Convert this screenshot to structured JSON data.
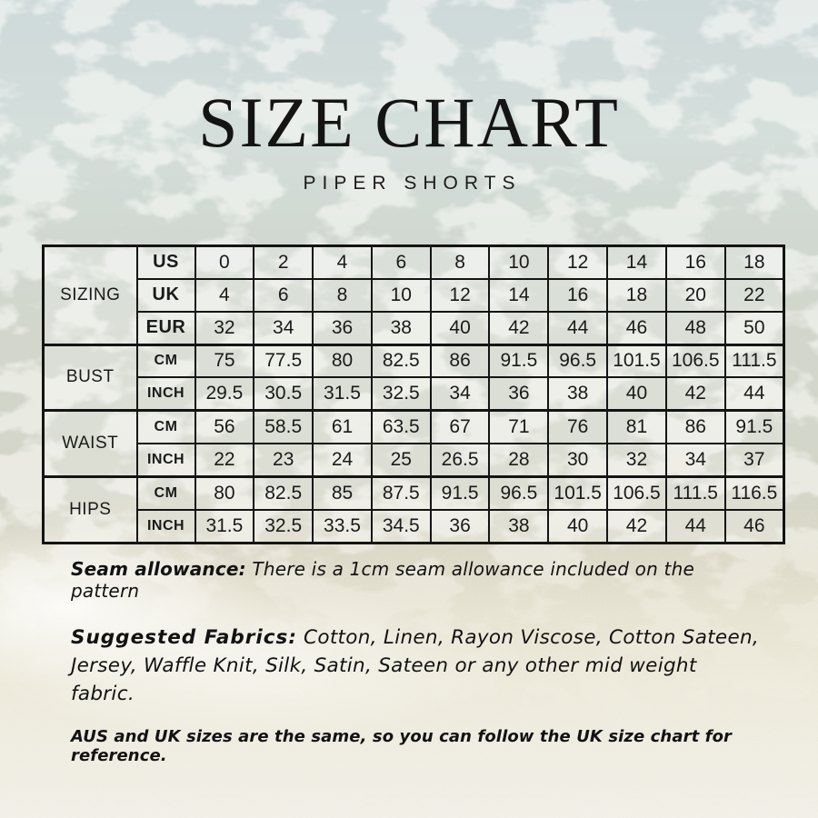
{
  "header": {
    "title": "SIZE CHART",
    "subtitle": "PIPER SHORTS"
  },
  "table": {
    "groups": [
      {
        "label": "SIZING",
        "rows": [
          {
            "unit": "US",
            "values": [
              "0",
              "2",
              "4",
              "6",
              "8",
              "10",
              "12",
              "14",
              "16",
              "18"
            ]
          },
          {
            "unit": "UK",
            "values": [
              "4",
              "6",
              "8",
              "10",
              "12",
              "14",
              "16",
              "18",
              "20",
              "22"
            ]
          },
          {
            "unit": "EUR",
            "values": [
              "32",
              "34",
              "36",
              "38",
              "40",
              "42",
              "44",
              "46",
              "48",
              "50"
            ]
          }
        ]
      },
      {
        "label": "BUST",
        "rows": [
          {
            "unit": "CM",
            "values": [
              "75",
              "77.5",
              "80",
              "82.5",
              "86",
              "91.5",
              "96.5",
              "101.5",
              "106.5",
              "111.5"
            ]
          },
          {
            "unit": "INCH",
            "values": [
              "29.5",
              "30.5",
              "31.5",
              "32.5",
              "34",
              "36",
              "38",
              "40",
              "42",
              "44"
            ]
          }
        ]
      },
      {
        "label": "WAIST",
        "rows": [
          {
            "unit": "CM",
            "values": [
              "56",
              "58.5",
              "61",
              "63.5",
              "67",
              "71",
              "76",
              "81",
              "86",
              "91.5"
            ]
          },
          {
            "unit": "INCH",
            "values": [
              "22",
              "23",
              "24",
              "25",
              "26.5",
              "28",
              "30",
              "32",
              "34",
              "37"
            ]
          }
        ]
      },
      {
        "label": "HIPS",
        "rows": [
          {
            "unit": "CM",
            "values": [
              "80",
              "82.5",
              "85",
              "87.5",
              "91.5",
              "96.5",
              "101.5",
              "106.5",
              "111.5",
              "116.5"
            ]
          },
          {
            "unit": "INCH",
            "values": [
              "31.5",
              "32.5",
              "33.5",
              "34.5",
              "36",
              "38",
              "40",
              "42",
              "44",
              "46"
            ]
          }
        ]
      }
    ]
  },
  "notes": {
    "seam_label": "Seam allowance:",
    "seam_text": " There is a 1cm seam allowance included on the pattern",
    "fabrics_label": "Suggested Fabrics:",
    "fabrics_text": " Cotton, Linen, Rayon Viscose, Cotton Sateen, Jersey, Waffle Knit, Silk, Satin, Sateen or any other mid weight fabric.",
    "aus_note": "AUS and UK sizes are the same, so you can follow the UK size chart for reference."
  },
  "colors": {
    "ink": "#141414",
    "table_border": "#141414",
    "water_top": "#ced9da",
    "water_mid": "#d2d6cb",
    "sand": "#e7e3d2",
    "sand_bottom": "#f1efe7",
    "foam": "#ffffff"
  }
}
